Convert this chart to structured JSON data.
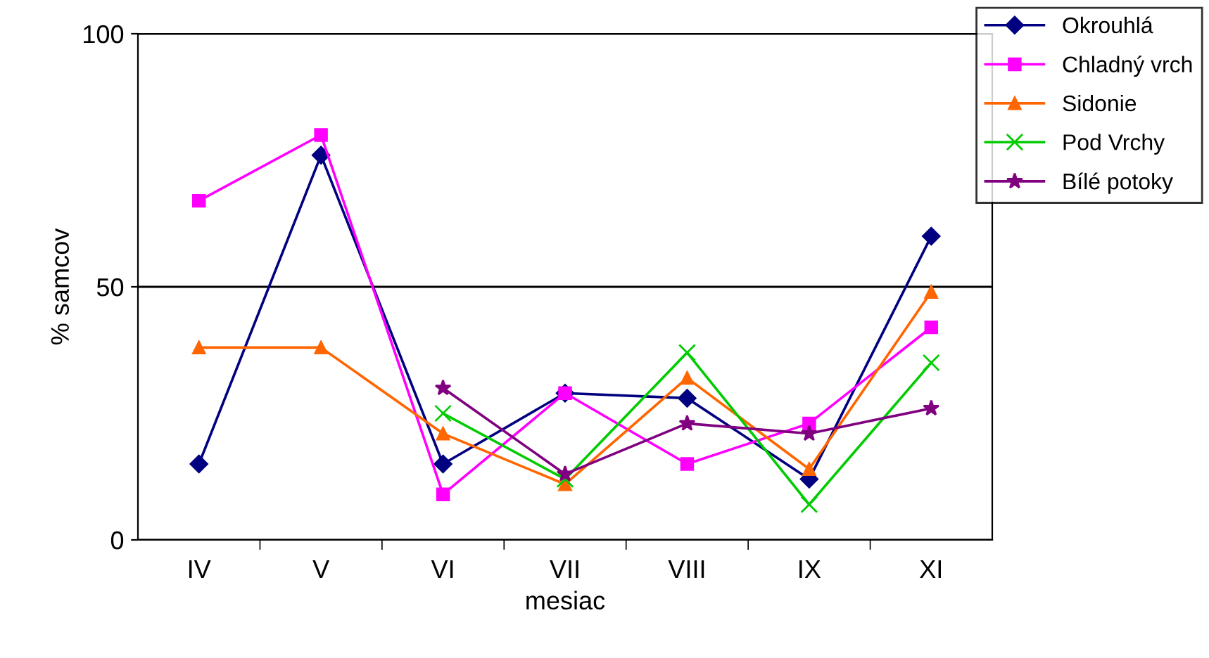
{
  "chart_data": {
    "type": "line",
    "xlabel": "mesiac",
    "ylabel": "% samcov",
    "categories": [
      "IV",
      "V",
      "VI",
      "VII",
      "VIII",
      "IX",
      "XI"
    ],
    "ylim": [
      0,
      100
    ],
    "yticks": [
      0,
      50,
      100
    ],
    "grid": "y",
    "legend": "right",
    "series": [
      {
        "name": "Okrouhlá",
        "color": "#000080",
        "marker": "diamond",
        "values": [
          15,
          76,
          15,
          29,
          28,
          12,
          60
        ]
      },
      {
        "name": "Chladný vrch",
        "color": "#ff00ff",
        "marker": "square",
        "values": [
          67,
          80,
          9,
          29,
          15,
          23,
          42
        ]
      },
      {
        "name": "Sidonie",
        "color": "#ff6600",
        "marker": "triangle",
        "values": [
          38,
          38,
          21,
          11,
          32,
          14,
          49
        ]
      },
      {
        "name": "Pod Vrchy",
        "color": "#00cc00",
        "marker": "cross",
        "values": [
          null,
          null,
          25,
          12,
          37,
          7,
          35
        ]
      },
      {
        "name": "Bílé potoky",
        "color": "#800080",
        "marker": "star",
        "values": [
          null,
          null,
          30,
          13,
          23,
          21,
          26
        ]
      }
    ]
  }
}
